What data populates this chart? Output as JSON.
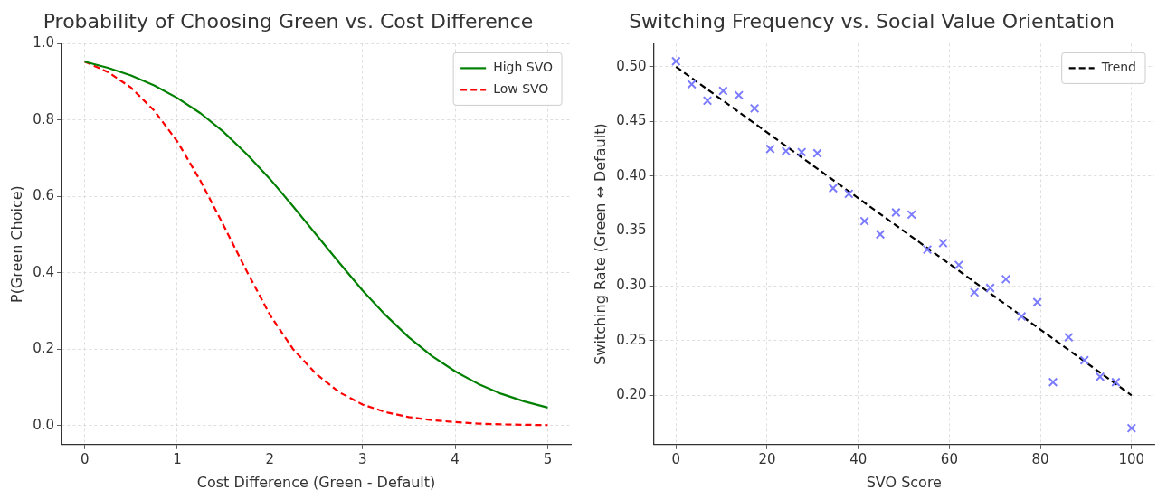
{
  "chart_data": [
    {
      "type": "line",
      "title": "Probability of Choosing Green vs. Cost Difference",
      "xlabel": "Cost Difference (Green - Default)",
      "ylabel": "P(Green Choice)",
      "x": [
        0,
        0.25,
        0.5,
        0.75,
        1,
        1.25,
        1.5,
        1.75,
        2,
        2.25,
        2.5,
        2.75,
        3,
        3.25,
        3.5,
        3.75,
        4,
        4.25,
        4.5,
        4.75,
        5
      ],
      "series": [
        {
          "name": "High SVO",
          "color": "#008000",
          "line_style": "solid",
          "values": [
            0.953,
            0.937,
            0.917,
            0.891,
            0.858,
            0.818,
            0.769,
            0.711,
            0.646,
            0.574,
            0.5,
            0.426,
            0.354,
            0.289,
            0.231,
            0.182,
            0.142,
            0.109,
            0.083,
            0.063,
            0.047
          ]
        },
        {
          "name": "Low SVO",
          "color": "#ff0000",
          "line_style": "dashed",
          "values": [
            0.953,
            0.926,
            0.885,
            0.825,
            0.744,
            0.641,
            0.524,
            0.404,
            0.29,
            0.2,
            0.135,
            0.087,
            0.055,
            0.035,
            0.022,
            0.014,
            0.009,
            0.005,
            0.003,
            0.002,
            0.001
          ]
        }
      ],
      "xlim": [
        -0.25,
        5.25
      ],
      "xticks": [
        0,
        1,
        2,
        3,
        4,
        5
      ],
      "ylim": [
        -0.05,
        1.0
      ],
      "yticks": [
        {
          "value": 0,
          "label": "0.0"
        },
        {
          "value": 0.2,
          "label": "0.2"
        },
        {
          "value": 0.4,
          "label": "0.4"
        },
        {
          "value": 0.6,
          "label": "0.6"
        },
        {
          "value": 0.8,
          "label": "0.8"
        },
        {
          "value": 1.0,
          "label": "1.0"
        }
      ],
      "grid": true,
      "legend": "top right",
      "marker": "none"
    },
    {
      "type": "scatter",
      "title": "Switching Frequency vs. Social Value Orientation",
      "xlabel": "SVO Score",
      "ylabel": "Switching Rate (Green ↔ Default)",
      "x": [
        0,
        3.45,
        6.9,
        10.34,
        13.79,
        17.24,
        20.69,
        24.14,
        27.59,
        31.03,
        34.48,
        37.93,
        41.38,
        44.83,
        48.28,
        51.72,
        55.17,
        58.62,
        62.07,
        65.52,
        68.97,
        72.41,
        75.86,
        79.31,
        82.76,
        86.21,
        89.66,
        93.1,
        96.55,
        100
      ],
      "series": [
        {
          "type": "scatter",
          "color": "#7b7bff",
          "marker": "cross",
          "values": [
            0.505,
            0.484,
            0.469,
            0.478,
            0.474,
            0.462,
            0.425,
            0.423,
            0.422,
            0.421,
            0.389,
            0.384,
            0.359,
            0.347,
            0.367,
            0.365,
            0.333,
            0.339,
            0.319,
            0.294,
            0.298,
            0.306,
            0.272,
            0.285,
            0.212,
            0.253,
            0.232,
            0.217,
            0.212,
            0.17
          ]
        },
        {
          "type": "line",
          "name": "Trend",
          "color": "#000000",
          "line_style": "dashed",
          "marker": "none",
          "x": [
            0,
            100
          ],
          "values": [
            0.5,
            0.2
          ]
        }
      ],
      "xlim": [
        -4.9,
        105
      ],
      "xticks": [
        0,
        20,
        40,
        60,
        80,
        100
      ],
      "ylim": [
        0.155,
        0.521
      ],
      "yticks": [
        {
          "value": 0.2,
          "label": "0.20"
        },
        {
          "value": 0.25,
          "label": "0.25"
        },
        {
          "value": 0.3,
          "label": "0.30"
        },
        {
          "value": 0.35,
          "label": "0.35"
        },
        {
          "value": 0.4,
          "label": "0.40"
        },
        {
          "value": 0.45,
          "label": "0.45"
        },
        {
          "value": 0.5,
          "label": "0.50"
        }
      ],
      "grid": true,
      "legend": "top right"
    }
  ]
}
